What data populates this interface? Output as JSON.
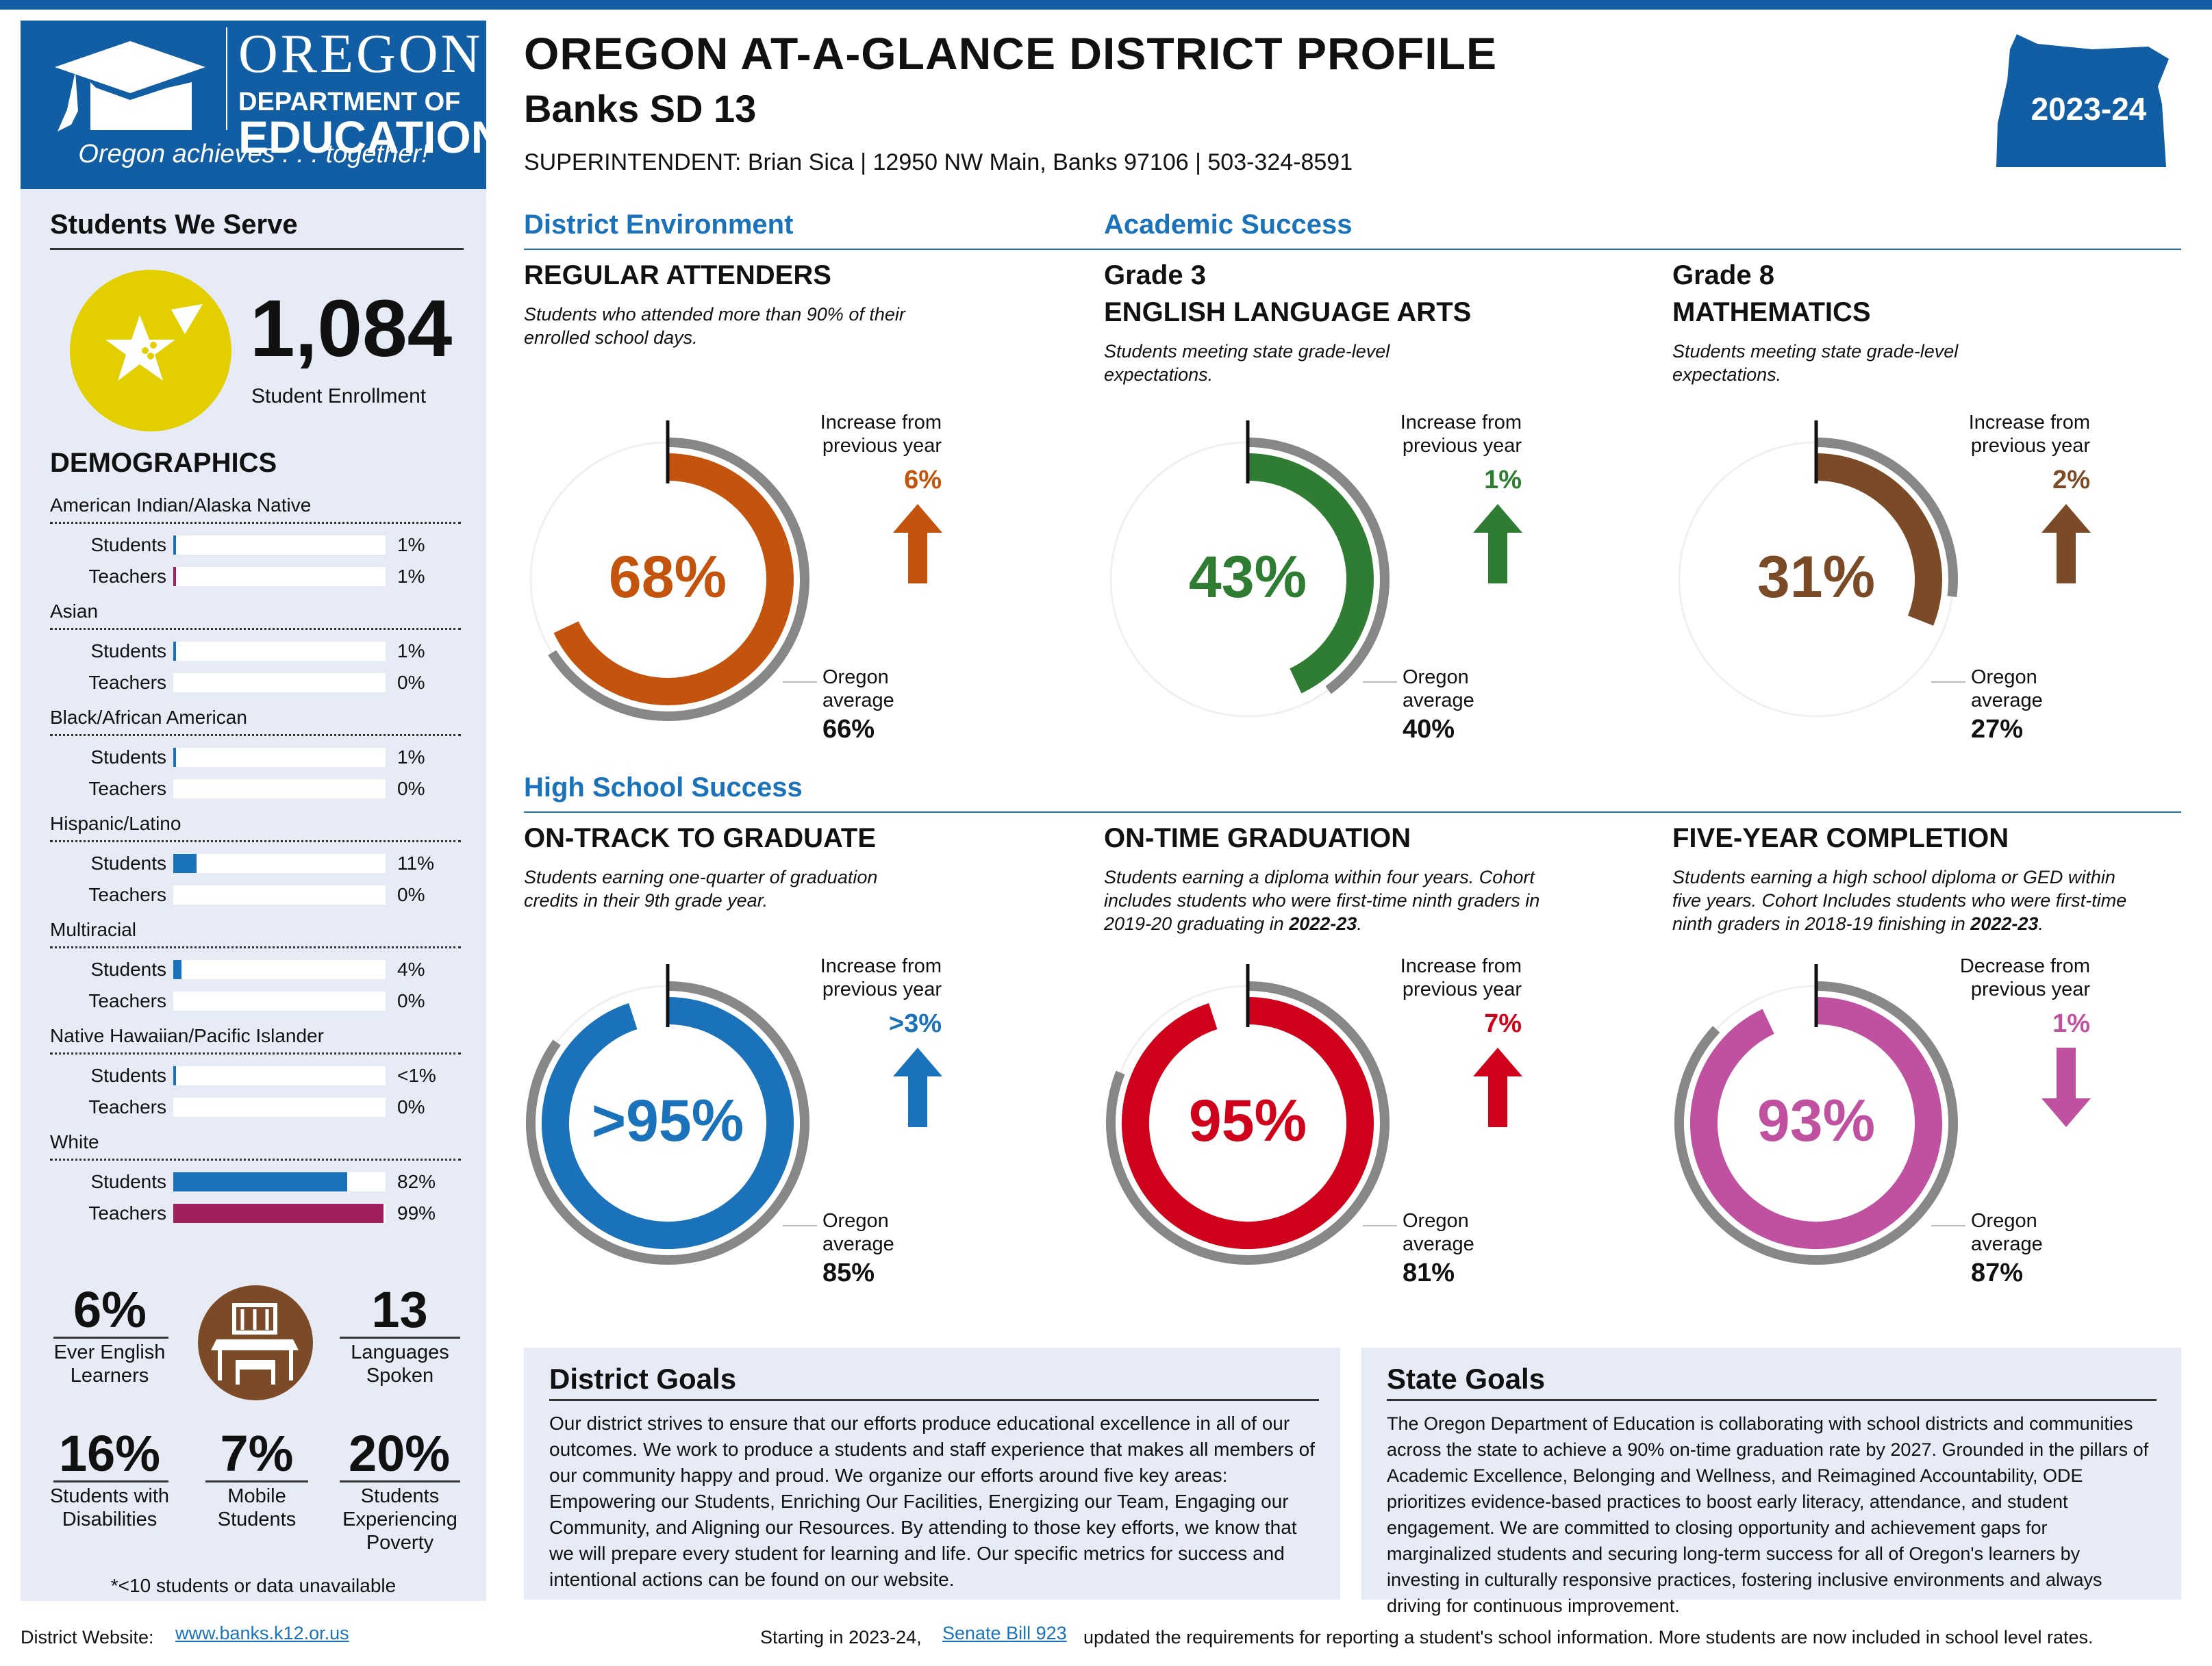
{
  "header": {
    "logo": {
      "oregon": "OREGON",
      "department_of": "DEPARTMENT OF",
      "education": "EDUCATION",
      "tagline": "Oregon achieves . . . together!"
    },
    "title": "OREGON AT-A-GLANCE DISTRICT PROFILE",
    "district": "Banks SD 13",
    "superintendent_line": "SUPERINTENDENT: Brian Sica  | 12950 NW Main, Banks 97106 | 503-324-8591",
    "year": "2023-24"
  },
  "sidebar": {
    "students_we_serve": "Students We Serve",
    "enrollment_value": "1,084",
    "enrollment_label": "Student Enrollment",
    "demographics_title": "DEMOGRAPHICS",
    "students_label": "Students",
    "teachers_label": "Teachers",
    "demographics": [
      {
        "name": "American Indian/Alaska Native",
        "students": {
          "text": "1%",
          "value": 1
        },
        "teachers": {
          "text": "1%",
          "value": 1
        }
      },
      {
        "name": "Asian",
        "students": {
          "text": "1%",
          "value": 1
        },
        "teachers": {
          "text": "0%",
          "value": 0
        }
      },
      {
        "name": "Black/African American",
        "students": {
          "text": "1%",
          "value": 1
        },
        "teachers": {
          "text": "0%",
          "value": 0
        }
      },
      {
        "name": "Hispanic/Latino",
        "students": {
          "text": "11%",
          "value": 11
        },
        "teachers": {
          "text": "0%",
          "value": 0
        }
      },
      {
        "name": "Multiracial",
        "students": {
          "text": "4%",
          "value": 4
        },
        "teachers": {
          "text": "0%",
          "value": 0
        }
      },
      {
        "name": "Native Hawaiian/Pacific Islander",
        "students": {
          "text": "<1%",
          "value": 0.5
        },
        "teachers": {
          "text": "0%",
          "value": 0
        }
      },
      {
        "name": "White",
        "students": {
          "text": "82%",
          "value": 82
        },
        "teachers": {
          "text": "99%",
          "value": 99
        }
      }
    ],
    "stats": {
      "ell_value": "6%",
      "ell_label": "Ever English Learners",
      "languages_value": "13",
      "languages_label": "Languages Spoken",
      "disabilities_value": "16%",
      "disabilities_label": "Students with Disabilities",
      "mobile_value": "7%",
      "mobile_label": "Mobile Students",
      "poverty_value": "20%",
      "poverty_label": "Students Experiencing Poverty"
    },
    "footnote": "*<10 students or data unavailable"
  },
  "sections": {
    "district_environment": "District Environment",
    "academic_success": "Academic Success",
    "high_school_success": "High School Success"
  },
  "labels": {
    "oregon_average": "Oregon average"
  },
  "metrics": [
    {
      "id": "attenders",
      "title1": "REGULAR ATTENDERS",
      "title2": "",
      "desc": "Students who attended more than 90% of their enrolled school days.",
      "value_text": "68%",
      "value": 68,
      "state_value": 66,
      "state_text": "66%",
      "change_label": "Increase from previous year",
      "change_text": "6%",
      "direction": "up",
      "color": "#c4530e"
    },
    {
      "id": "ela",
      "title1": "Grade 3",
      "title2": "ENGLISH LANGUAGE ARTS",
      "desc": "Students meeting state grade-level expectations.",
      "value_text": "43%",
      "value": 43,
      "state_value": 40,
      "state_text": "40%",
      "change_label": "Increase from previous year",
      "change_text": "1%",
      "direction": "up",
      "color": "#2e7d32"
    },
    {
      "id": "math",
      "title1": "Grade 8",
      "title2": "MATHEMATICS",
      "desc": "Students meeting state grade-level expectations.",
      "value_text": "31%",
      "value": 31,
      "state_value": 27,
      "state_text": "27%",
      "change_label": "Increase from previous year",
      "change_text": "2%",
      "direction": "up",
      "color": "#7b4a26"
    },
    {
      "id": "ontrack",
      "title1": "ON-TRACK TO GRADUATE",
      "title2": "",
      "desc": "Students earning one-quarter of graduation credits in their 9th grade year.",
      "value_text": ">95%",
      "value": 95,
      "state_value": 85,
      "state_text": "85%",
      "change_label": "Increase from previous year",
      "change_text": ">3%",
      "direction": "up",
      "color": "#1a72bb"
    },
    {
      "id": "ontime",
      "title1": "ON-TIME GRADUATION",
      "title2": "",
      "desc_a": "Students earning a diploma within four years. Cohort includes students who were first-time ninth graders in 2019-20 graduating in ",
      "desc_b": "2022-23",
      "desc_c": ".",
      "value_text": "95%",
      "value": 95,
      "state_value": 81,
      "state_text": "81%",
      "change_label": "Increase from previous year",
      "change_text": "7%",
      "direction": "up",
      "color": "#d0021b"
    },
    {
      "id": "fiveyear",
      "title1": "FIVE-YEAR COMPLETION",
      "title2": "",
      "desc_a": "Students earning a high school diploma or GED within five years. Cohort Includes students who were first-time ninth graders in 2018-19 finishing in ",
      "desc_b": "2022-23",
      "desc_c": ".",
      "value_text": "93%",
      "value": 93,
      "state_value": 87,
      "state_text": "87%",
      "change_label": "Decrease from previous year",
      "change_text": "1%",
      "direction": "down",
      "color": "#c050a0"
    }
  ],
  "district_goals": {
    "title": "District Goals",
    "text": "Our district strives to ensure that our efforts produce educational excellence in all of our outcomes. We work to produce a students and staff experience that makes all members of our community happy and proud. We organize our efforts around five key areas: Empowering our Students, Enriching Our Facilities, Energizing our Team, Engaging our Community, and Aligning our Resources. By attending to those key efforts, we know that we will prepare every student for learning and life. Our specific metrics for success and intentional actions can be found on our website."
  },
  "state_goals": {
    "title": "State Goals",
    "text": "The Oregon Department of Education is collaborating with school districts and communities across the state to achieve a 90% on-time graduation rate by 2027. Grounded in the pillars of Academic Excellence, Belonging and Wellness, and Reimagined Accountability, ODE prioritizes evidence-based practices to boost early literacy, attendance, and student engagement. We are committed to closing opportunity and achievement gaps for marginalized students and securing long-term success for all of Oregon's learners by investing in culturally responsive practices, fostering inclusive environments and always driving for continuous improvement."
  },
  "footer": {
    "website_label": "District Website:",
    "website_link": "www.banks.k12.or.us",
    "note_a": "Starting in 2023-24,",
    "note_link": "Senate Bill 923",
    "note_b": "updated the requirements for reporting a student's school information. More students are now included in school level rates."
  },
  "colors": {
    "brand_blue": "#125ea4",
    "section_blue": "#1a72bb",
    "state_ring": "#878787",
    "enroll_circle": "#e3cf00",
    "icon_brown": "#7b4a26",
    "teacher_bar": "#a0205e",
    "student_bar": "#1a72bb",
    "sidebar_bg": "#e6ebf6"
  }
}
